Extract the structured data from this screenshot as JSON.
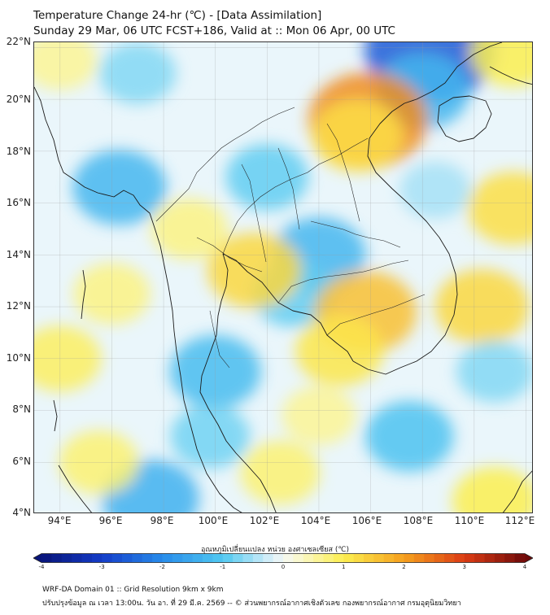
{
  "header": {
    "title": "Temperature Change 24-hr (℃) - [Data Assimilation]",
    "subtitle": "Sunday 29 Mar, 06 UTC FCST+186, Valid at :: Mon 06 Apr, 00 UTC"
  },
  "map": {
    "lat_labels": [
      "22°N",
      "20°N",
      "18°N",
      "16°N",
      "14°N",
      "12°N",
      "10°N",
      "8°N",
      "6°N",
      "4°N"
    ],
    "lon_labels": [
      "94°E",
      "96°E",
      "98°E",
      "100°E",
      "102°E",
      "104°E",
      "106°E",
      "108°E",
      "110°E",
      "112°E"
    ],
    "lat_range": [
      4,
      22.2
    ],
    "lon_range": [
      93,
      112.3
    ],
    "field_blobs": [
      {
        "lon": 108.3,
        "lat": 21.9,
        "value": -2.6
      },
      {
        "lon": 108.0,
        "lat": 20.3,
        "value": -1.3
      },
      {
        "lon": 105.9,
        "lat": 19.2,
        "value": 2.2
      },
      {
        "lon": 105.5,
        "lat": 18.6,
        "value": 1.2
      },
      {
        "lon": 96.3,
        "lat": 16.6,
        "value": -1.3
      },
      {
        "lon": 97.0,
        "lat": 21.0,
        "value": -0.7
      },
      {
        "lon": 94.0,
        "lat": 21.5,
        "value": 0.6
      },
      {
        "lon": 102.0,
        "lat": 17.0,
        "value": -0.9
      },
      {
        "lon": 104.0,
        "lat": 14.0,
        "value": -1.3
      },
      {
        "lon": 103.0,
        "lat": 12.5,
        "value": -0.9
      },
      {
        "lon": 101.5,
        "lat": 13.4,
        "value": 1.3
      },
      {
        "lon": 105.8,
        "lat": 11.8,
        "value": 1.6
      },
      {
        "lon": 104.8,
        "lat": 10.3,
        "value": 1.1
      },
      {
        "lon": 100.0,
        "lat": 9.5,
        "value": -1.2
      },
      {
        "lon": 99.8,
        "lat": 7.0,
        "value": -0.8
      },
      {
        "lon": 99.0,
        "lat": 15.0,
        "value": 0.7
      },
      {
        "lon": 96.0,
        "lat": 12.5,
        "value": 0.7
      },
      {
        "lon": 94.0,
        "lat": 10.0,
        "value": 0.9
      },
      {
        "lon": 97.5,
        "lat": 4.6,
        "value": -1.4
      },
      {
        "lon": 95.5,
        "lat": 6.0,
        "value": 0.8
      },
      {
        "lon": 107.5,
        "lat": 7.0,
        "value": -1.1
      },
      {
        "lon": 110.3,
        "lat": 12.0,
        "value": 1.3
      },
      {
        "lon": 111.5,
        "lat": 15.8,
        "value": 1.2
      },
      {
        "lon": 110.8,
        "lat": 9.5,
        "value": -0.7
      },
      {
        "lon": 110.8,
        "lat": 4.5,
        "value": 1.0
      },
      {
        "lon": 104.0,
        "lat": 7.8,
        "value": 0.6
      },
      {
        "lon": 102.5,
        "lat": 5.6,
        "value": 0.8
      },
      {
        "lon": 111.5,
        "lat": 21.8,
        "value": 1.0
      },
      {
        "lon": 108.5,
        "lat": 16.5,
        "value": -0.5
      }
    ]
  },
  "colorbar": {
    "title": "อุณหภูมิเปลี่ยนแปลง หน่วย องศาเซลเซียส (℃)",
    "min": -4,
    "max": 4,
    "tick_values": [
      -4,
      -3,
      -2,
      -1,
      0,
      1,
      2,
      3,
      4
    ],
    "tick_labels": [
      "-4",
      "-3",
      "-2",
      "-1",
      "0",
      "1",
      "2",
      "3",
      "4"
    ]
  },
  "footer": {
    "line1": "WRF-DA Domain 01 :: Grid Resolution 9km x 9km",
    "line2": "ปรับปรุงข้อมูล ณ เวลา 13:00น. วัน อา. ที่ 29 มี.ค. 2569 -- © ส่วนพยากรณ์อากาศเชิงตัวเลข กองพยากรณ์อากาศ กรมอุตุนิยมวิทยา"
  }
}
